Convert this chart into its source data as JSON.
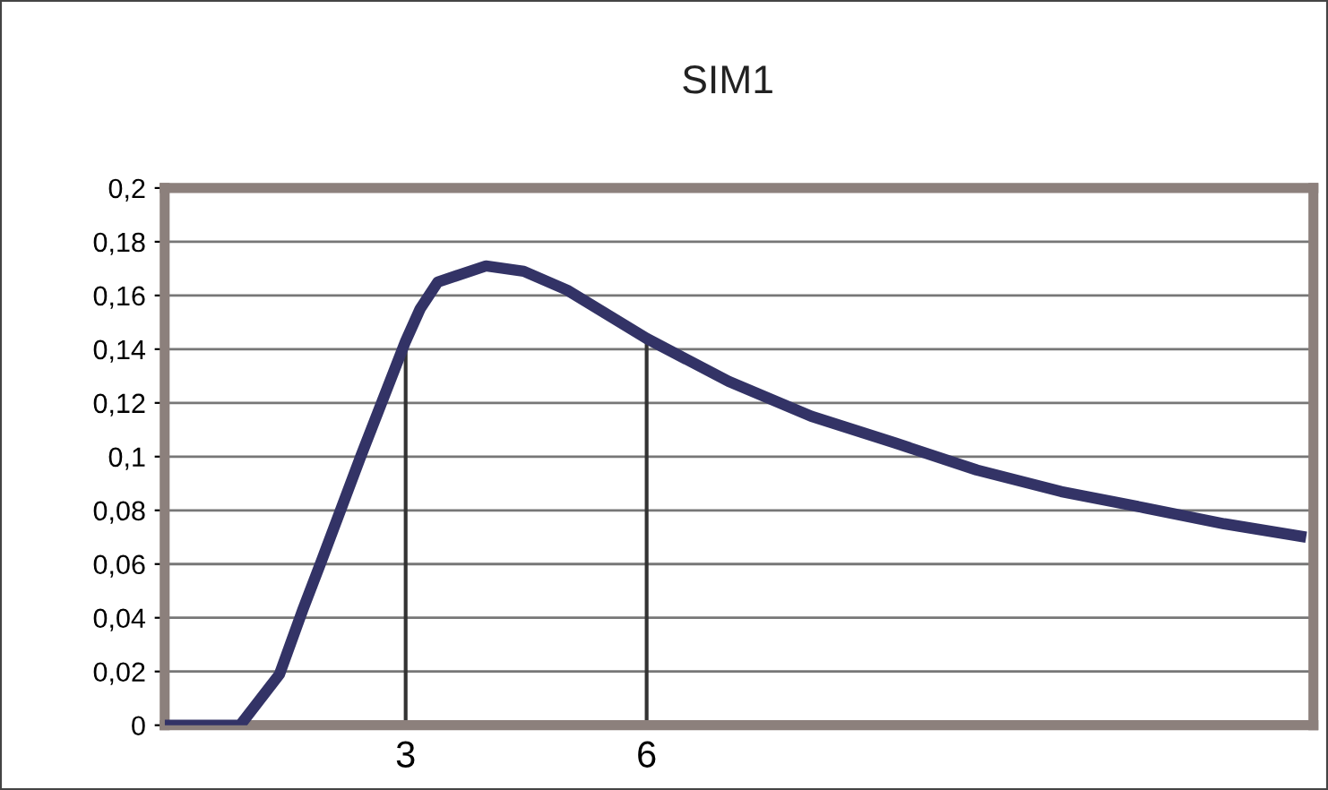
{
  "chart_data": {
    "type": "line",
    "title": "SIM1",
    "x": [
      0,
      0.94,
      1.43,
      1.72,
      1.95,
      2.44,
      3.0,
      3.18,
      3.4,
      4.0,
      4.47,
      5.01,
      6.0,
      7.02,
      8.05,
      9.1,
      10.11,
      11.16,
      12.19,
      13.19,
      14.21
    ],
    "series": [
      {
        "color": "#333366",
        "values": [
          0,
          0,
          0.019,
          0.043,
          0.061,
          0.1,
          0.143,
          0.155,
          0.165,
          0.171,
          0.169,
          0.162,
          0.144,
          0.128,
          0.115,
          0.105,
          0.095,
          0.087,
          0.081,
          0.075,
          0.07
        ]
      }
    ],
    "xlim": [
      0,
      14.3
    ],
    "xticks": [
      3,
      6
    ],
    "ylim": [
      0,
      0.2
    ],
    "yticks": [
      0,
      {
        "value": 0.02,
        "label": "0,02"
      },
      {
        "value": 0.04,
        "label": "0,04"
      },
      {
        "value": 0.06,
        "label": "0,06"
      },
      {
        "value": 0.08,
        "label": "0,08"
      },
      {
        "value": 0.1,
        "label": "0,1"
      },
      {
        "value": 0.12,
        "label": "0,12"
      },
      {
        "value": 0.14,
        "label": "0,14"
      },
      {
        "value": 0.16,
        "label": "0,16"
      },
      {
        "value": 0.18,
        "label": "0,18"
      },
      {
        "value": 0.2,
        "label": "0,2"
      }
    ],
    "grid": "y",
    "marker": "none",
    "line_style": "solid",
    "ref_lines": [
      {
        "axis": "x",
        "value": 3,
        "color": "#333333"
      },
      {
        "axis": "x",
        "value": 6,
        "color": "#333333"
      }
    ]
  }
}
